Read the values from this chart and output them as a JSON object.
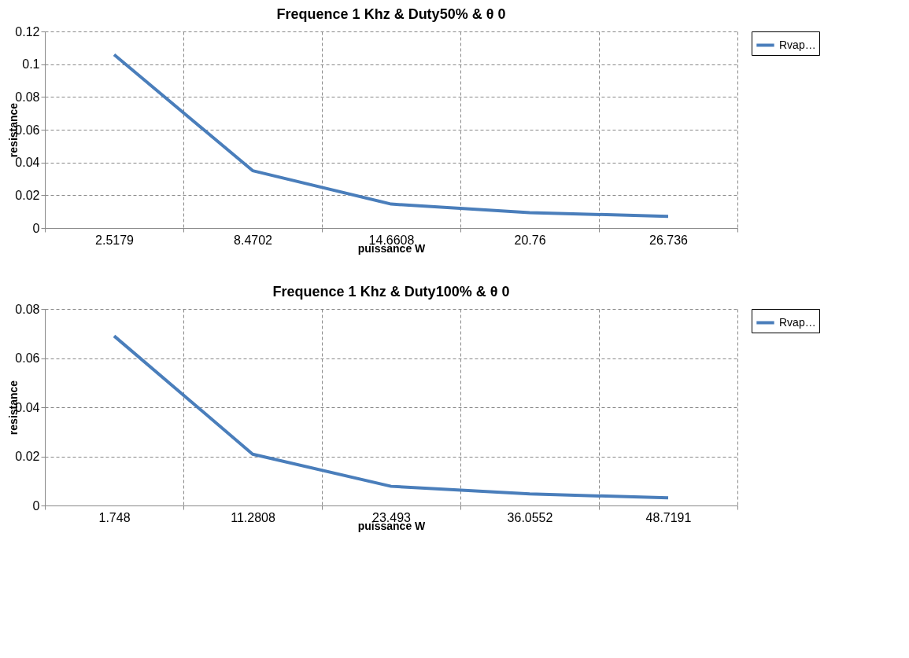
{
  "chart_data": [
    {
      "type": "line",
      "title": "Frequence 1 Khz & Duty50%  &  θ 0",
      "xlabel": "puissance W",
      "ylabel": "resistance",
      "categories": [
        "2.5179",
        "8.4702",
        "14.6608",
        "20.76",
        "26.736"
      ],
      "series": [
        {
          "name": "Rvap…",
          "color": "#4a7ebb",
          "values": [
            0.1058,
            0.035,
            0.0146,
            0.0094,
            0.0071
          ]
        }
      ],
      "ylim": [
        0,
        0.12
      ],
      "yticks": [
        0,
        0.02,
        0.04,
        0.06,
        0.08,
        0.1,
        0.12
      ],
      "grid": true,
      "legend": "right",
      "marker": "none",
      "line_style": "solid"
    },
    {
      "type": "line",
      "title": "Frequence 1 Khz & Duty100%  &  θ 0",
      "xlabel": "puissance W",
      "ylabel": "resistance",
      "categories": [
        "1.748",
        "11.2808",
        "23.493",
        "36.0552",
        "48.7191"
      ],
      "series": [
        {
          "name": "Rvap…",
          "color": "#4a7ebb",
          "values": [
            0.069,
            0.0209,
            0.0078,
            0.0047,
            0.0031
          ]
        }
      ],
      "ylim": [
        0,
        0.08
      ],
      "yticks": [
        0,
        0.02,
        0.04,
        0.06,
        0.08
      ],
      "grid": true,
      "legend": "right",
      "marker": "none",
      "line_style": "solid"
    }
  ]
}
